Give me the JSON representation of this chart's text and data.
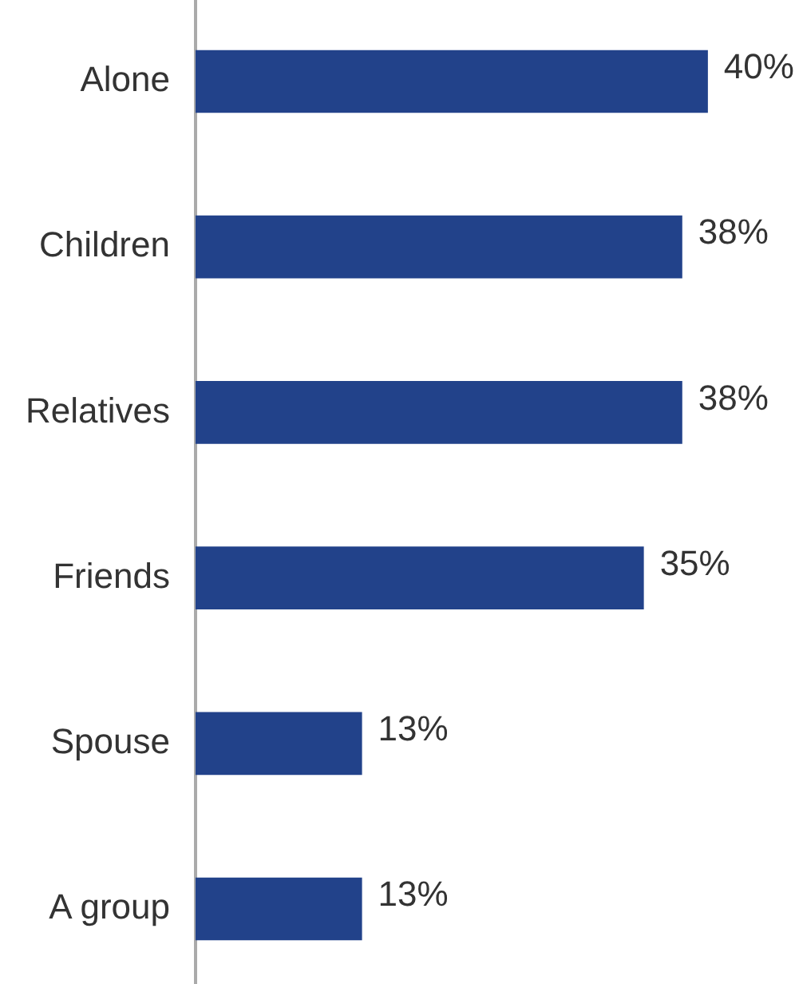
{
  "chart_data": {
    "type": "bar",
    "orientation": "horizontal",
    "categories": [
      "Alone",
      "Children",
      "Relatives",
      "Friends",
      "Spouse",
      "A group"
    ],
    "values": [
      40,
      38,
      38,
      35,
      13,
      13
    ],
    "color": "#22428a",
    "value_labels": [
      "40%",
      "38%",
      "38%",
      "35%",
      "13%",
      "13%"
    ],
    "legend": false,
    "tick_labels": "y"
  }
}
